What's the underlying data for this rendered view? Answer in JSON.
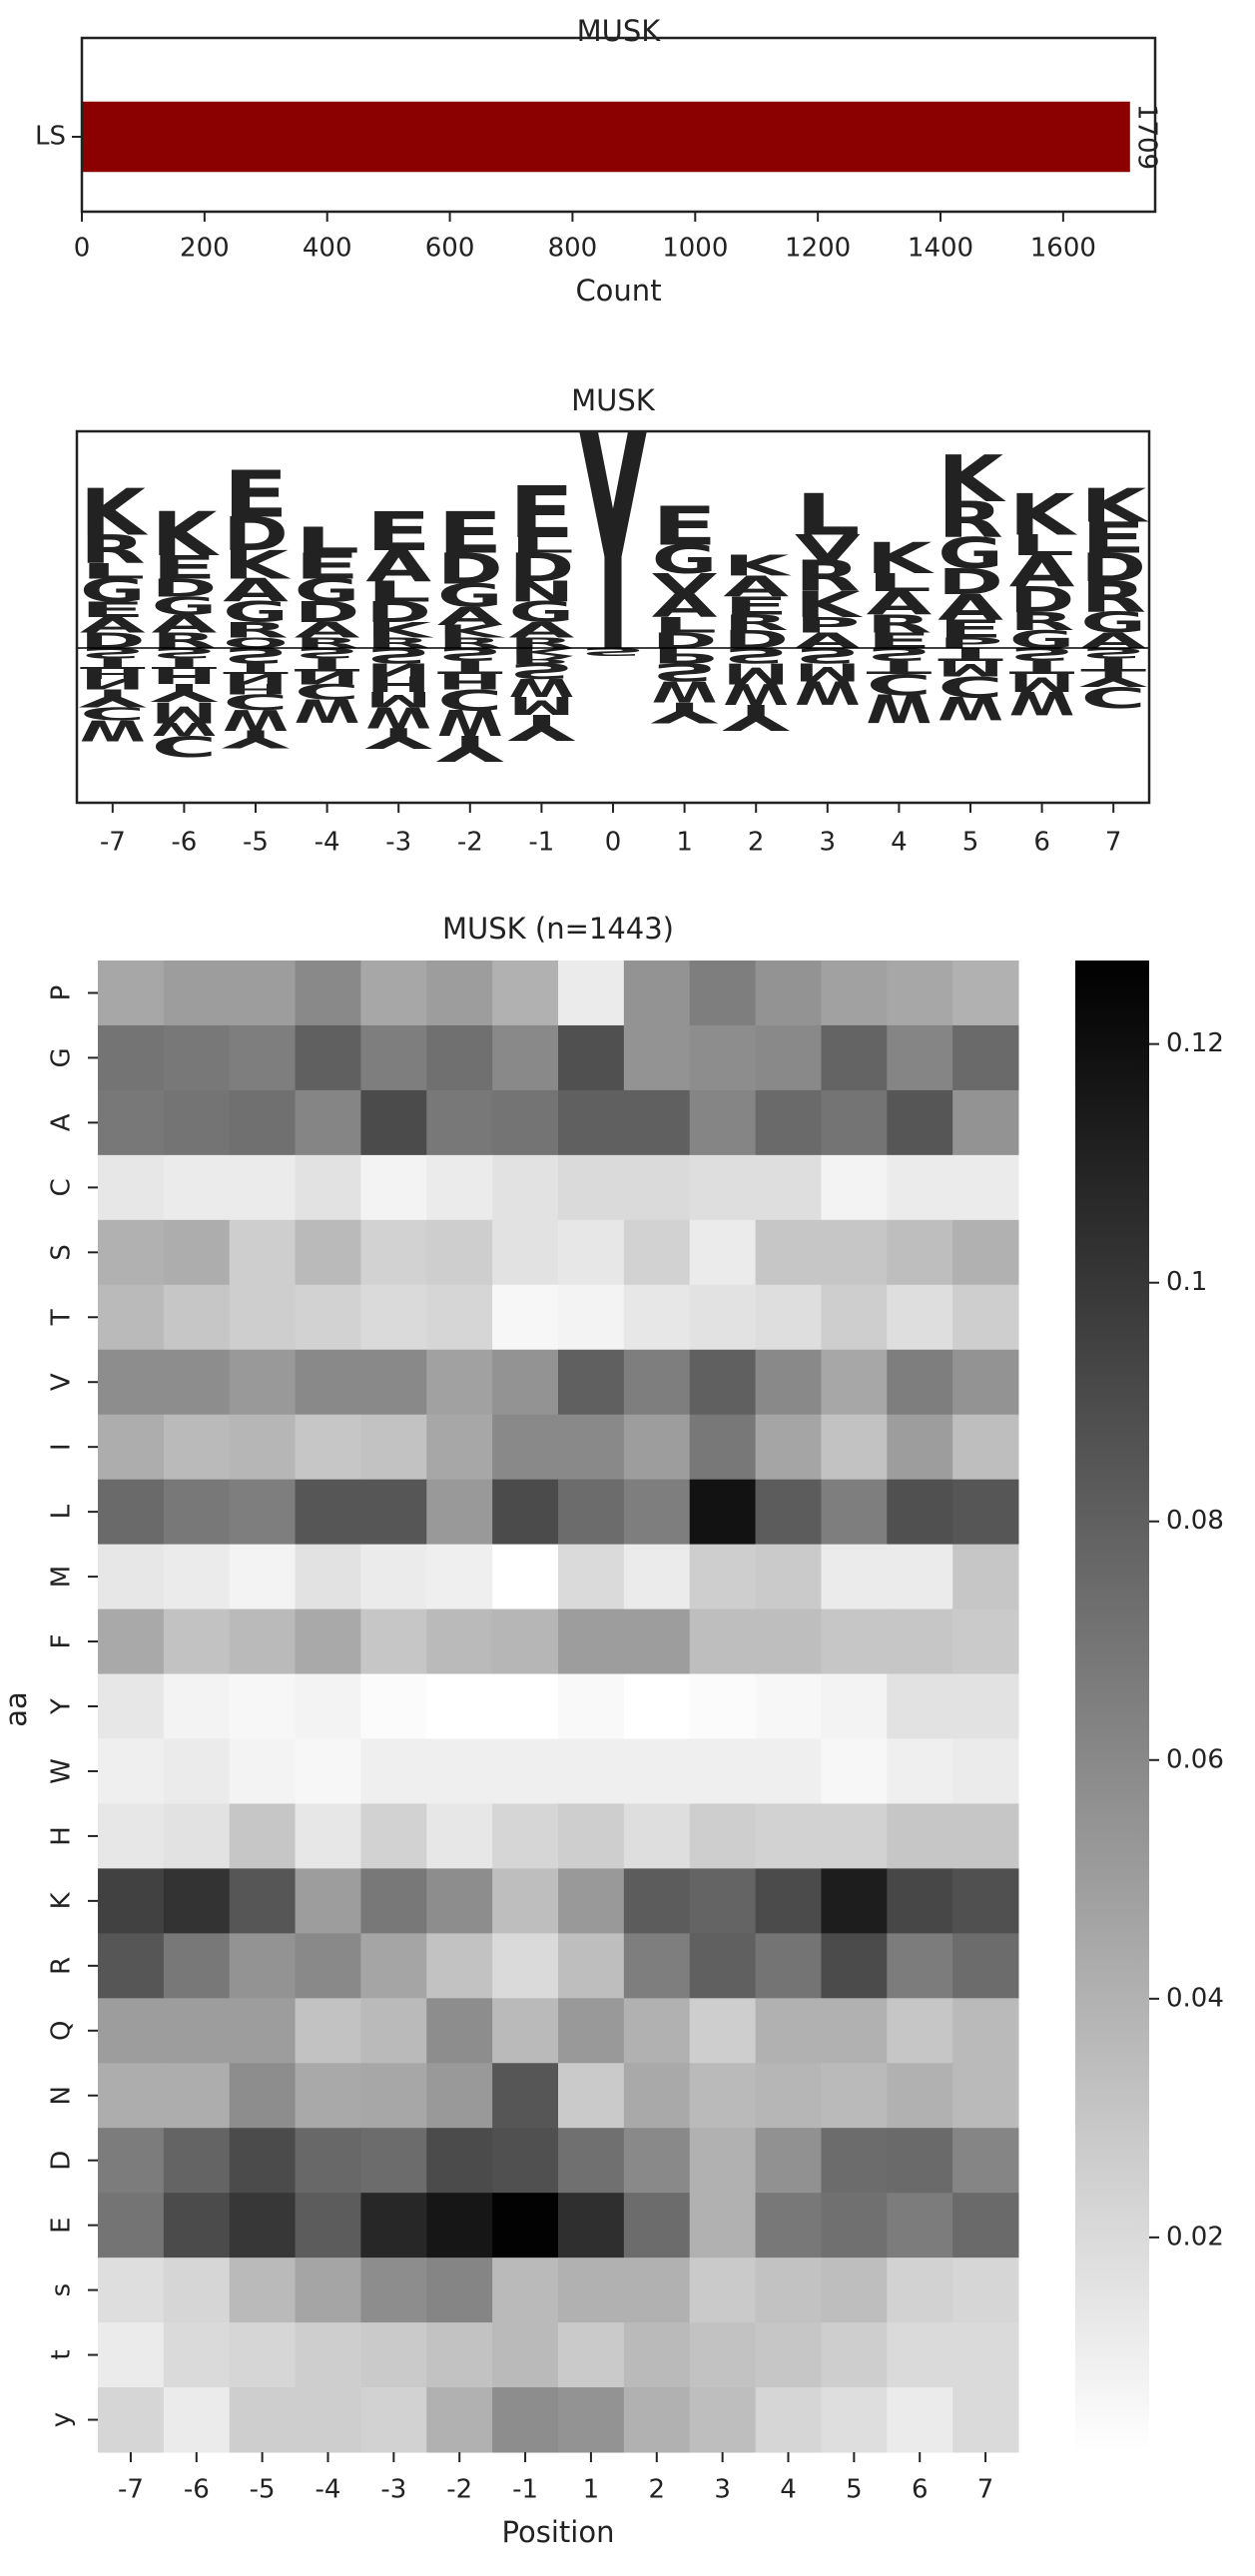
{
  "chart_data": [
    {
      "type": "barh",
      "title": "MUSK",
      "categories": [
        "LS"
      ],
      "values": [
        1709
      ],
      "color": "#8b0000",
      "xlim": [
        0,
        1750
      ],
      "xticks": [
        0,
        200,
        400,
        600,
        800,
        1000,
        1200,
        1400,
        1600
      ],
      "xlabel": "Count"
    },
    {
      "type": "logo",
      "title": "MUSK",
      "x": [
        -7,
        -6,
        -5,
        -4,
        -3,
        -2,
        -1,
        0,
        1,
        2,
        3,
        4,
        5,
        6,
        7
      ],
      "xlim": [
        -7.5,
        7.5
      ],
      "ylim": [
        -0.3,
        0.42
      ],
      "letter_colors": {
        "K": "#0000ee",
        "R": "#0000ee",
        "H": "#8a2be2",
        "D": "#e0103a",
        "E": "#e0103a",
        "G": "#008000",
        "A": "#008000",
        "S": "#800080",
        "T": "#800080",
        "N": "#8a2be2",
        "Q": "#800080",
        "L": "#daa520",
        "V": "#daa520",
        "I": "#daa520",
        "M": "#daa520",
        "C": "#daa520",
        "W": "#daa520",
        "F": "#daa520",
        "P": "#000000",
        "Y": "#8b3a0f"
      },
      "stacks": [
        {
          "up": [
            "D",
            "A",
            "E",
            "G",
            "L",
            "R",
            "K"
          ],
          "up_heights": [
            0.03,
            0.03,
            0.03,
            0.045,
            0.03,
            0.055,
            0.09
          ],
          "down": [
            "S",
            "T",
            "H",
            "N",
            "Y",
            "C",
            "W"
          ],
          "down_heights": [
            0.02,
            0.02,
            0.02,
            0.02,
            0.035,
            0.025,
            0.04
          ]
        },
        {
          "up": [
            "R",
            "A",
            "G",
            "D",
            "E",
            "K"
          ],
          "up_heights": [
            0.03,
            0.035,
            0.035,
            0.035,
            0.045,
            0.085
          ],
          "down": [
            "S",
            "T",
            "H",
            "Y",
            "M",
            "W",
            "C"
          ],
          "down_heights": [
            0.02,
            0.02,
            0.03,
            0.035,
            0.04,
            0.025,
            0.04
          ]
        },
        {
          "up": [
            "Q",
            "R",
            "G",
            "A",
            "K",
            "D",
            "E"
          ],
          "up_heights": [
            0.02,
            0.03,
            0.04,
            0.045,
            0.055,
            0.065,
            0.09
          ],
          "down": [
            "S",
            "T",
            "N",
            "H",
            "C",
            "W",
            "Y"
          ],
          "down_heights": [
            0.03,
            0.02,
            0.02,
            0.02,
            0.03,
            0.04,
            0.035
          ]
        },
        {
          "up": [
            "R",
            "A",
            "D",
            "G",
            "E",
            "L"
          ],
          "up_heights": [
            0.02,
            0.03,
            0.04,
            0.045,
            0.05,
            0.05
          ],
          "down": [
            "S",
            "T",
            "N",
            "C",
            "W"
          ],
          "down_heights": [
            0.02,
            0.025,
            0.025,
            0.03,
            0.045
          ]
        },
        {
          "up": [
            "R",
            "K",
            "D",
            "L",
            "A",
            "E"
          ],
          "up_heights": [
            0.02,
            0.03,
            0.04,
            0.04,
            0.06,
            0.075
          ],
          "down": [
            "S",
            "N",
            "H",
            "M",
            "W",
            "Y"
          ],
          "down_heights": [
            0.03,
            0.025,
            0.03,
            0.03,
            0.04,
            0.04
          ]
        },
        {
          "up": [
            "R",
            "K",
            "A",
            "G",
            "D",
            "E"
          ],
          "up_heights": [
            0.02,
            0.025,
            0.035,
            0.045,
            0.06,
            0.08
          ],
          "down": [
            "S",
            "T",
            "H",
            "C",
            "W",
            "Y"
          ],
          "down_heights": [
            0.025,
            0.025,
            0.03,
            0.04,
            0.05,
            0.05
          ]
        },
        {
          "up": [
            "R",
            "A",
            "G",
            "N",
            "D",
            "L",
            "E"
          ],
          "up_heights": [
            0.02,
            0.03,
            0.04,
            0.04,
            0.055,
            0.03,
            0.1
          ],
          "down": [
            "K",
            "R",
            "S",
            "W",
            "M",
            "Y"
          ],
          "down_heights": [
            0.015,
            0.015,
            0.03,
            0.035,
            0.035,
            0.05
          ]
        },
        {
          "up": [
            "Y"
          ],
          "up_heights": [
            0.42
          ],
          "down": [
            "S"
          ],
          "down_heights": [
            0.015
          ]
        },
        {
          "up": [
            "D",
            "L",
            "A",
            "V",
            "G",
            "E"
          ],
          "up_heights": [
            0.03,
            0.03,
            0.045,
            0.04,
            0.055,
            0.075
          ],
          "down": [
            "P",
            "S",
            "W",
            "Y"
          ],
          "down_heights": [
            0.03,
            0.035,
            0.04,
            0.04
          ]
        },
        {
          "up": [
            "D",
            "R",
            "E",
            "A",
            "K"
          ],
          "up_heights": [
            0.035,
            0.03,
            0.035,
            0.04,
            0.04
          ],
          "down": [
            "S",
            "M",
            "W",
            "Y"
          ],
          "down_heights": [
            0.03,
            0.04,
            0.04,
            0.05
          ]
        },
        {
          "up": [
            "A",
            "P",
            "K",
            "R",
            "V",
            "L"
          ],
          "up_heights": [
            0.03,
            0.03,
            0.05,
            0.06,
            0.05,
            0.08
          ],
          "down": [
            "S",
            "M",
            "W"
          ],
          "down_heights": [
            0.03,
            0.035,
            0.045
          ]
        },
        {
          "up": [
            "E",
            "R",
            "A",
            "L",
            "K"
          ],
          "up_heights": [
            0.03,
            0.035,
            0.045,
            0.035,
            0.06
          ],
          "down": [
            "S",
            "T",
            "C",
            "W"
          ],
          "down_heights": [
            0.025,
            0.025,
            0.04,
            0.055
          ]
        },
        {
          "up": [
            "P",
            "E",
            "A",
            "D",
            "G",
            "R",
            "K"
          ],
          "up_heights": [
            0.02,
            0.035,
            0.05,
            0.05,
            0.06,
            0.07,
            0.09
          ],
          "down": [
            "T",
            "M",
            "C",
            "W"
          ],
          "down_heights": [
            0.025,
            0.03,
            0.04,
            0.045
          ]
        },
        {
          "up": [
            "G",
            "R",
            "D",
            "A",
            "L",
            "K"
          ],
          "up_heights": [
            0.035,
            0.035,
            0.05,
            0.06,
            0.04,
            0.08
          ],
          "down": [
            "S",
            "T",
            "M",
            "W"
          ],
          "down_heights": [
            0.025,
            0.025,
            0.035,
            0.045
          ]
        },
        {
          "up": [
            "A",
            "G",
            "R",
            "D",
            "E",
            "K"
          ],
          "up_heights": [
            0.03,
            0.04,
            0.06,
            0.055,
            0.06,
            0.065
          ],
          "down": [
            "S",
            "T",
            "Y",
            "C"
          ],
          "down_heights": [
            0.02,
            0.025,
            0.03,
            0.04
          ]
        }
      ]
    },
    {
      "type": "heatmap",
      "title": "MUSK (n=1443)",
      "xlabel": "Position",
      "ylabel": "aa",
      "colormap": "Greys",
      "x": [
        -7,
        -6,
        -5,
        -4,
        -3,
        -2,
        -1,
        1,
        2,
        3,
        4,
        5,
        6,
        7
      ],
      "y": [
        "P",
        "G",
        "A",
        "C",
        "S",
        "T",
        "V",
        "I",
        "L",
        "M",
        "F",
        "Y",
        "W",
        "H",
        "K",
        "R",
        "Q",
        "N",
        "D",
        "E",
        "s",
        "t",
        "y"
      ],
      "zlim": [
        0.002,
        0.127
      ],
      "zticks": [
        0.02,
        0.04,
        0.06,
        0.08,
        0.1,
        0.12
      ],
      "values": [
        [
          0.045,
          0.05,
          0.05,
          0.06,
          0.045,
          0.05,
          0.04,
          0.012,
          0.055,
          0.065,
          0.055,
          0.048,
          0.045,
          0.04
        ],
        [
          0.07,
          0.068,
          0.065,
          0.08,
          0.065,
          0.072,
          0.06,
          0.088,
          0.055,
          0.058,
          0.06,
          0.078,
          0.062,
          0.075
        ],
        [
          0.068,
          0.07,
          0.072,
          0.062,
          0.09,
          0.068,
          0.07,
          0.08,
          0.08,
          0.062,
          0.075,
          0.07,
          0.085,
          0.055
        ],
        [
          0.014,
          0.012,
          0.012,
          0.016,
          0.008,
          0.012,
          0.016,
          0.02,
          0.02,
          0.018,
          0.018,
          0.008,
          0.012,
          0.012
        ],
        [
          0.04,
          0.042,
          0.026,
          0.036,
          0.024,
          0.026,
          0.016,
          0.014,
          0.024,
          0.012,
          0.03,
          0.03,
          0.034,
          0.04
        ],
        [
          0.036,
          0.03,
          0.026,
          0.024,
          0.02,
          0.022,
          0.006,
          0.008,
          0.014,
          0.016,
          0.018,
          0.026,
          0.018,
          0.026
        ],
        [
          0.058,
          0.058,
          0.052,
          0.06,
          0.06,
          0.048,
          0.055,
          0.08,
          0.065,
          0.08,
          0.06,
          0.045,
          0.065,
          0.055
        ],
        [
          0.042,
          0.036,
          0.038,
          0.03,
          0.032,
          0.045,
          0.06,
          0.06,
          0.05,
          0.068,
          0.046,
          0.032,
          0.05,
          0.034
        ],
        [
          0.075,
          0.068,
          0.065,
          0.085,
          0.085,
          0.052,
          0.09,
          0.074,
          0.065,
          0.118,
          0.082,
          0.065,
          0.088,
          0.085
        ],
        [
          0.014,
          0.012,
          0.008,
          0.016,
          0.012,
          0.01,
          0.002,
          0.02,
          0.012,
          0.026,
          0.028,
          0.012,
          0.012,
          0.03
        ],
        [
          0.044,
          0.032,
          0.036,
          0.044,
          0.03,
          0.036,
          0.038,
          0.05,
          0.05,
          0.034,
          0.034,
          0.03,
          0.03,
          0.028
        ],
        [
          0.014,
          0.008,
          0.006,
          0.008,
          0.004,
          0.002,
          0.002,
          0.005,
          0.002,
          0.004,
          0.006,
          0.008,
          0.016,
          0.016
        ],
        [
          0.01,
          0.012,
          0.008,
          0.006,
          0.01,
          0.01,
          0.01,
          0.01,
          0.01,
          0.01,
          0.01,
          0.006,
          0.01,
          0.012
        ],
        [
          0.014,
          0.016,
          0.03,
          0.014,
          0.024,
          0.014,
          0.022,
          0.026,
          0.018,
          0.026,
          0.024,
          0.024,
          0.03,
          0.03
        ],
        [
          0.095,
          0.102,
          0.085,
          0.05,
          0.068,
          0.058,
          0.034,
          0.052,
          0.082,
          0.078,
          0.09,
          0.113,
          0.092,
          0.088
        ],
        [
          0.085,
          0.068,
          0.055,
          0.06,
          0.046,
          0.032,
          0.02,
          0.034,
          0.065,
          0.08,
          0.07,
          0.09,
          0.066,
          0.074
        ],
        [
          0.05,
          0.05,
          0.05,
          0.032,
          0.036,
          0.058,
          0.036,
          0.052,
          0.04,
          0.026,
          0.04,
          0.04,
          0.03,
          0.036
        ],
        [
          0.042,
          0.042,
          0.058,
          0.044,
          0.045,
          0.052,
          0.085,
          0.028,
          0.044,
          0.036,
          0.038,
          0.036,
          0.04,
          0.036
        ],
        [
          0.066,
          0.078,
          0.09,
          0.076,
          0.074,
          0.09,
          0.088,
          0.072,
          0.06,
          0.04,
          0.056,
          0.074,
          0.075,
          0.062
        ],
        [
          0.07,
          0.09,
          0.1,
          0.082,
          0.108,
          0.116,
          0.126,
          0.104,
          0.074,
          0.04,
          0.068,
          0.072,
          0.066,
          0.075
        ],
        [
          0.018,
          0.022,
          0.036,
          0.046,
          0.058,
          0.062,
          0.036,
          0.04,
          0.04,
          0.028,
          0.032,
          0.034,
          0.024,
          0.022
        ],
        [
          0.012,
          0.02,
          0.022,
          0.026,
          0.028,
          0.032,
          0.036,
          0.028,
          0.036,
          0.032,
          0.03,
          0.026,
          0.02,
          0.02
        ],
        [
          0.022,
          0.012,
          0.026,
          0.026,
          0.024,
          0.04,
          0.058,
          0.055,
          0.04,
          0.034,
          0.022,
          0.018,
          0.012,
          0.02
        ]
      ]
    }
  ]
}
